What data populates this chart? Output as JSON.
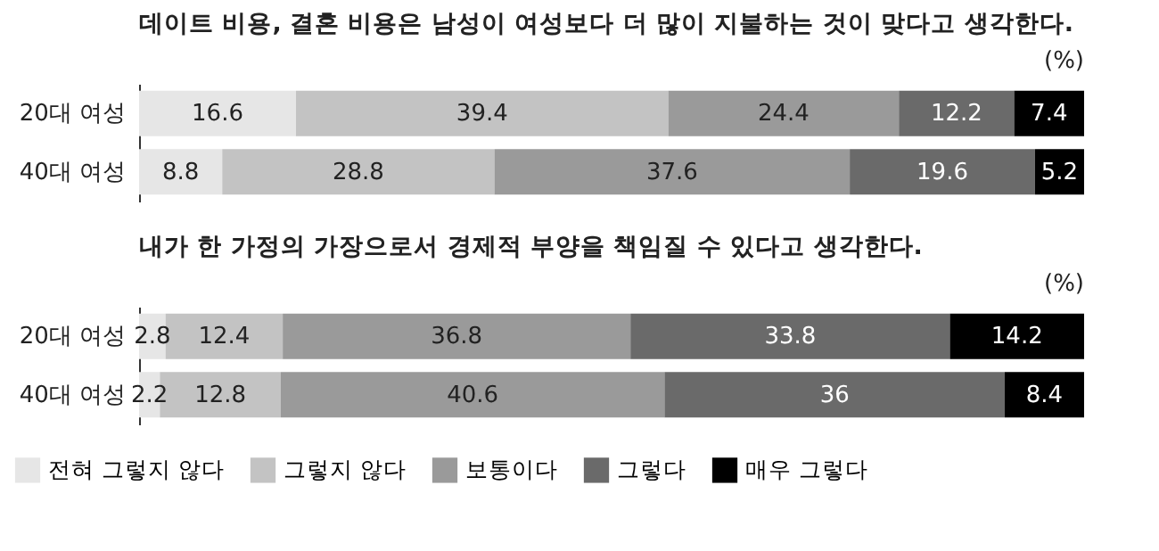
{
  "chart_data": [
    {
      "type": "bar",
      "orientation": "horizontal",
      "stacked": true,
      "data_labels": true,
      "legend": false,
      "tick_labels": "y",
      "title": "데이트 비용, 결혼 비용은 남성이 여성보다 더 많이 지불하는 것이 맞다고 생각한다.",
      "annotations": [
        "(%)"
      ],
      "categories": [
        "20대 여성",
        "40대 여성"
      ],
      "series": [
        {
          "color": "#e6e6e6",
          "values": [
            16.6,
            8.8
          ]
        },
        {
          "color": "#c3c3c3",
          "values": [
            39.4,
            28.8
          ]
        },
        {
          "color": "#9a9a9a",
          "values": [
            24.4,
            37.6
          ]
        },
        {
          "color": "#6a6a6a",
          "values": [
            12.2,
            19.6
          ]
        },
        {
          "color": "#000000",
          "values": [
            7.4,
            5.2
          ]
        }
      ]
    },
    {
      "type": "bar",
      "orientation": "horizontal",
      "stacked": true,
      "data_labels": true,
      "legend": "bottom",
      "tick_labels": "y",
      "title": "내가 한 가정의 가장으로서 경제적 부양을 책임질 수 있다고 생각한다.",
      "annotations": [
        "(%)"
      ],
      "categories": [
        "20대 여성",
        "40대 여성"
      ],
      "series": [
        {
          "name": "전혀 그렇지 않다",
          "color": "#e6e6e6",
          "values": [
            2.8,
            2.2
          ]
        },
        {
          "name": "그렇지 않다",
          "color": "#c3c3c3",
          "values": [
            12.4,
            12.8
          ]
        },
        {
          "name": "보통이다",
          "color": "#9a9a9a",
          "values": [
            36.8,
            40.6
          ]
        },
        {
          "name": "그렇다",
          "color": "#6a6a6a",
          "values": [
            33.8,
            36
          ]
        },
        {
          "name": "매우 그렇다",
          "color": "#000000",
          "values": [
            14.2,
            8.4
          ]
        }
      ]
    }
  ]
}
